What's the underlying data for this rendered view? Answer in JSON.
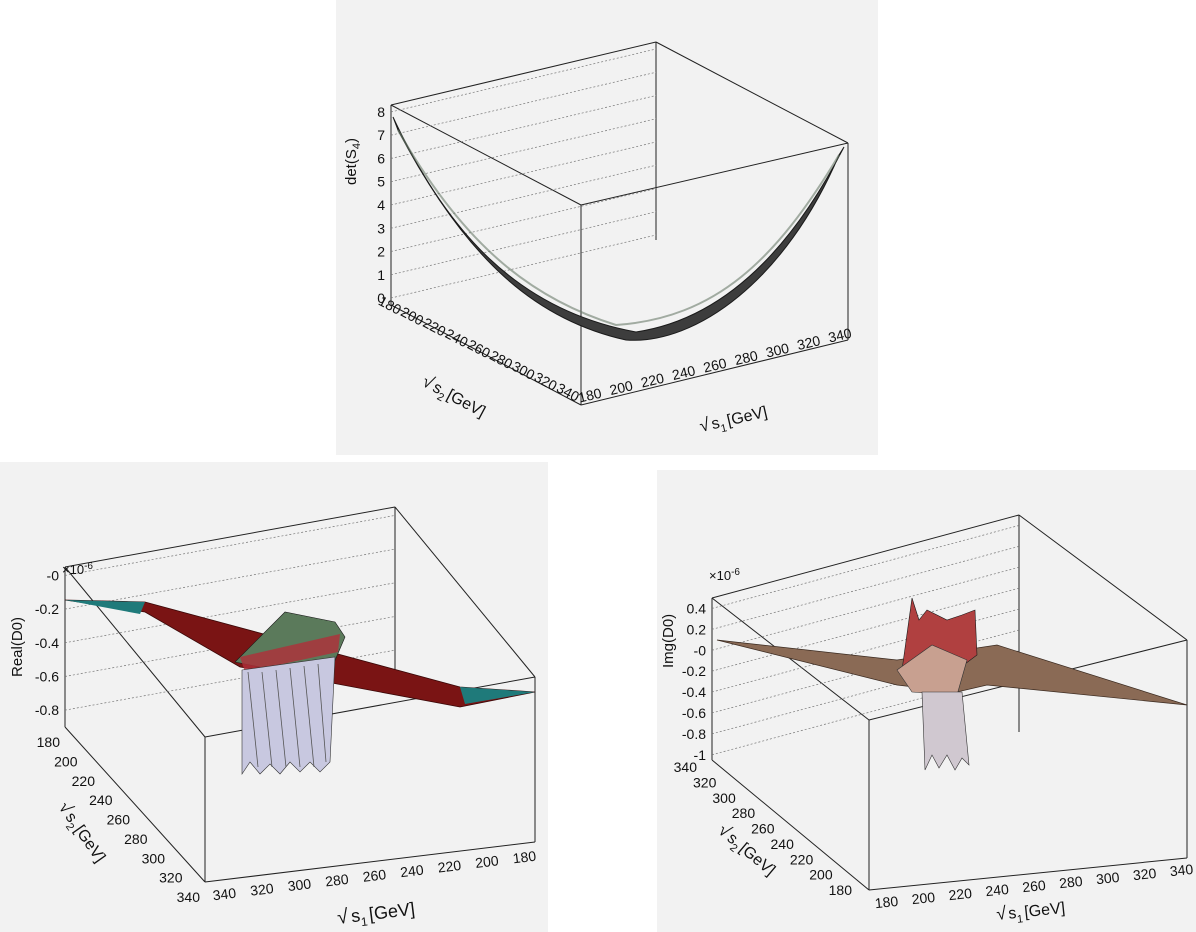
{
  "chart_data": [
    {
      "type": "surface",
      "zlabel": "det(S",
      "zlabel_sub": "4",
      "zlabel_close": ")",
      "zticks": [
        "0",
        "1",
        "2",
        "3",
        "4",
        "5",
        "6",
        "7",
        "8"
      ],
      "zlim": [
        -0.3,
        8.3
      ],
      "x_axis_label": "s",
      "x_axis_sub": "1",
      "x_axis_unit": "[GeV]",
      "y_axis_label": "s",
      "y_axis_sub": "2",
      "y_axis_unit": "[GeV]",
      "x_ticks": [
        "180",
        "200",
        "220",
        "240",
        "260",
        "280",
        "300",
        "320",
        "340"
      ],
      "y_ticks": [
        "180",
        "200",
        "220",
        "240",
        "260",
        "280",
        "300",
        "320",
        "340"
      ],
      "range_gev": [
        170,
        350
      ],
      "grid": true,
      "colors": {
        "surface": "#3a3a3a",
        "mesh": "#888888"
      }
    },
    {
      "type": "surface",
      "zlabel": "Real(D0)",
      "multiplier": "×10",
      "multiplier_exp": "-6",
      "zticks": [
        "-0",
        "-0.2",
        "-0.4",
        "-0.6",
        "-0.8"
      ],
      "zlim": [
        -0.9,
        0.05
      ],
      "x_axis_label": "s",
      "x_axis_sub": "1",
      "x_axis_unit": "[GeV]",
      "y_axis_label": "s",
      "y_axis_sub": "2",
      "y_axis_unit": "[GeV]",
      "x_ticks": [
        "340",
        "320",
        "300",
        "280",
        "260",
        "240",
        "220",
        "200",
        "180"
      ],
      "y_ticks": [
        "180",
        "200",
        "220",
        "240",
        "260",
        "280",
        "300",
        "320",
        "340"
      ],
      "grid": true,
      "colors": {
        "surface": "#7a1414",
        "edge": "#1f7a7a",
        "spikes": "#c8c8e0"
      }
    },
    {
      "type": "surface",
      "zlabel": "Img(D0)",
      "multiplier": "×10",
      "multiplier_exp": "-6",
      "zticks": [
        "0.4",
        "0.2",
        "-0",
        "-0.2",
        "-0.4",
        "-0.6",
        "-0.8",
        "-1"
      ],
      "zlim": [
        -1.05,
        0.5
      ],
      "x_axis_label": "s",
      "x_axis_sub": "1",
      "x_axis_unit": "[GeV]",
      "y_axis_label": "s",
      "y_axis_sub": "2",
      "y_axis_unit": "[GeV]",
      "x_ticks": [
        "180",
        "200",
        "220",
        "240",
        "260",
        "280",
        "300",
        "320",
        "340"
      ],
      "y_ticks": [
        "340",
        "320",
        "300",
        "280",
        "260",
        "240",
        "220",
        "200",
        "180"
      ],
      "grid": true,
      "colors": {
        "surface": "#8a6a55",
        "spikes": "#d0c0c0"
      }
    }
  ]
}
